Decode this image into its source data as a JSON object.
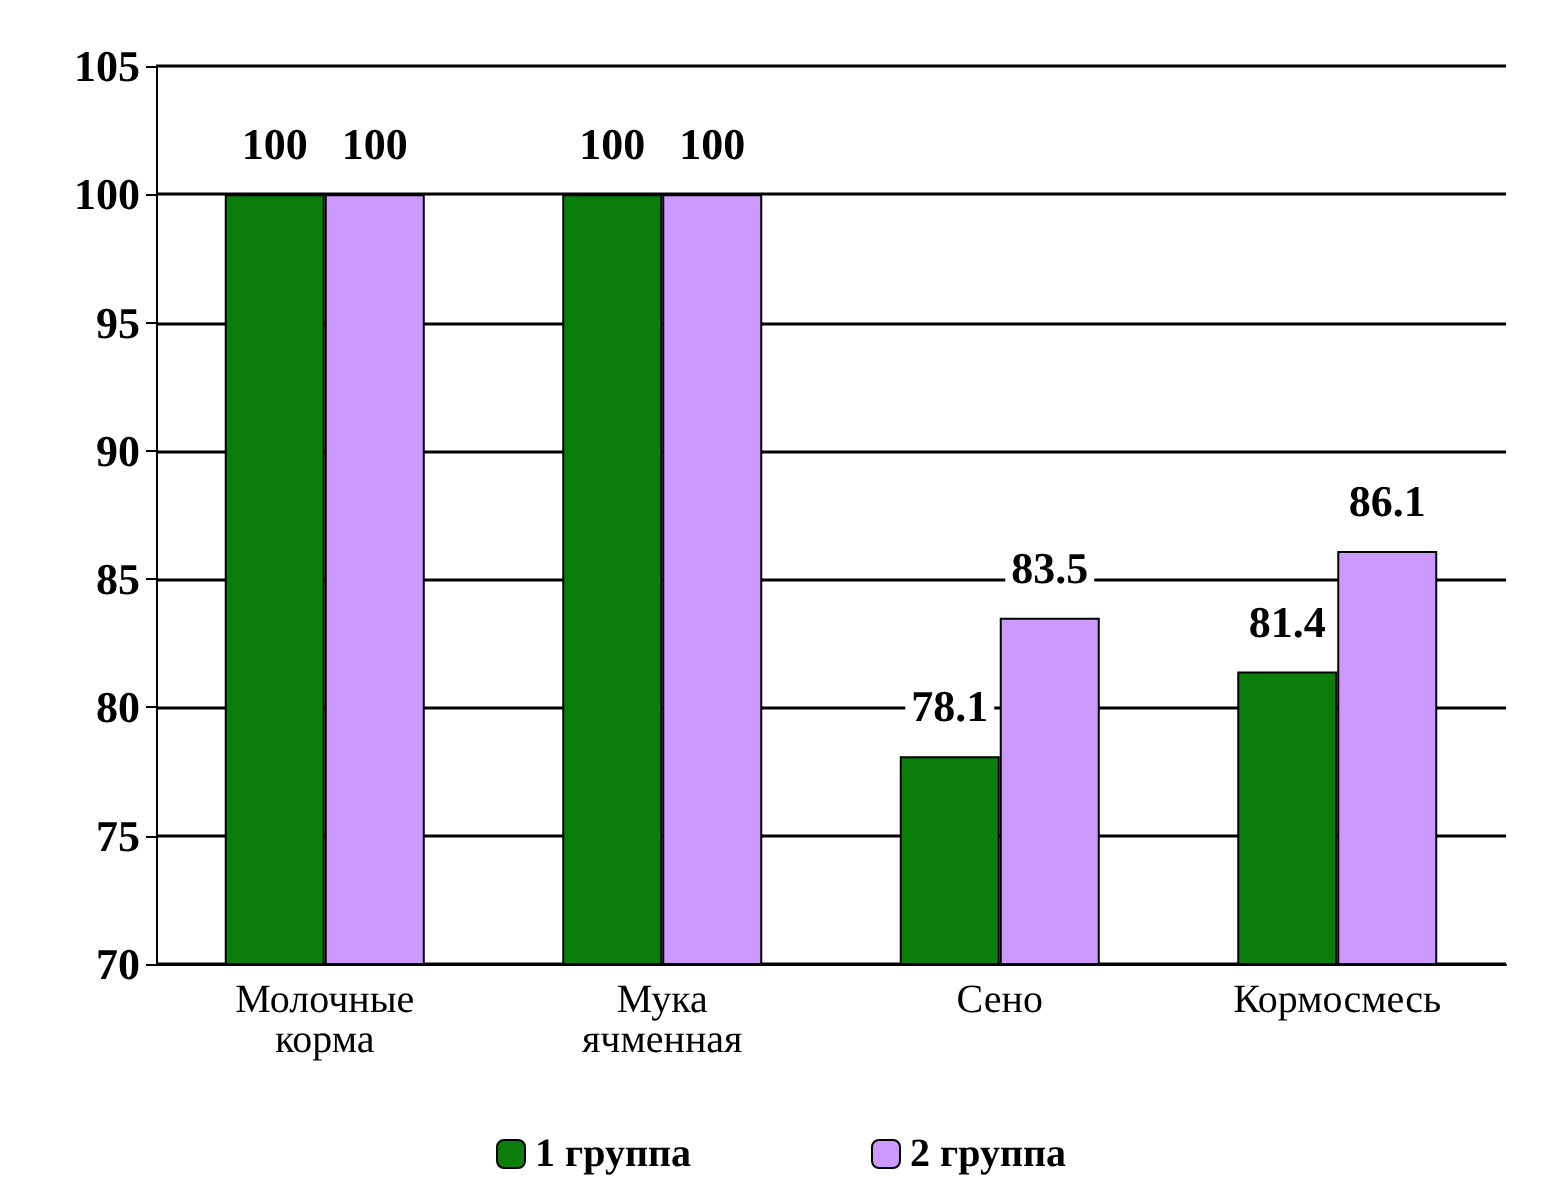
{
  "chart_data": {
    "type": "bar",
    "categories": [
      "Молочные\nкорма",
      "Мука\nячменная",
      "Сено",
      "Кормосмесь"
    ],
    "series": [
      {
        "name": "1 группа",
        "color": "#0a7d0a",
        "values": [
          100,
          100,
          78.1,
          81.4
        ]
      },
      {
        "name": "2 группа",
        "color": "#cc99ff",
        "values": [
          100,
          100,
          83.5,
          86.1
        ]
      }
    ],
    "ylim": [
      70,
      105
    ],
    "yticks": [
      70,
      75,
      80,
      85,
      90,
      95,
      100,
      105
    ],
    "grid": "y",
    "legend": "bottom",
    "data_labels": true
  }
}
